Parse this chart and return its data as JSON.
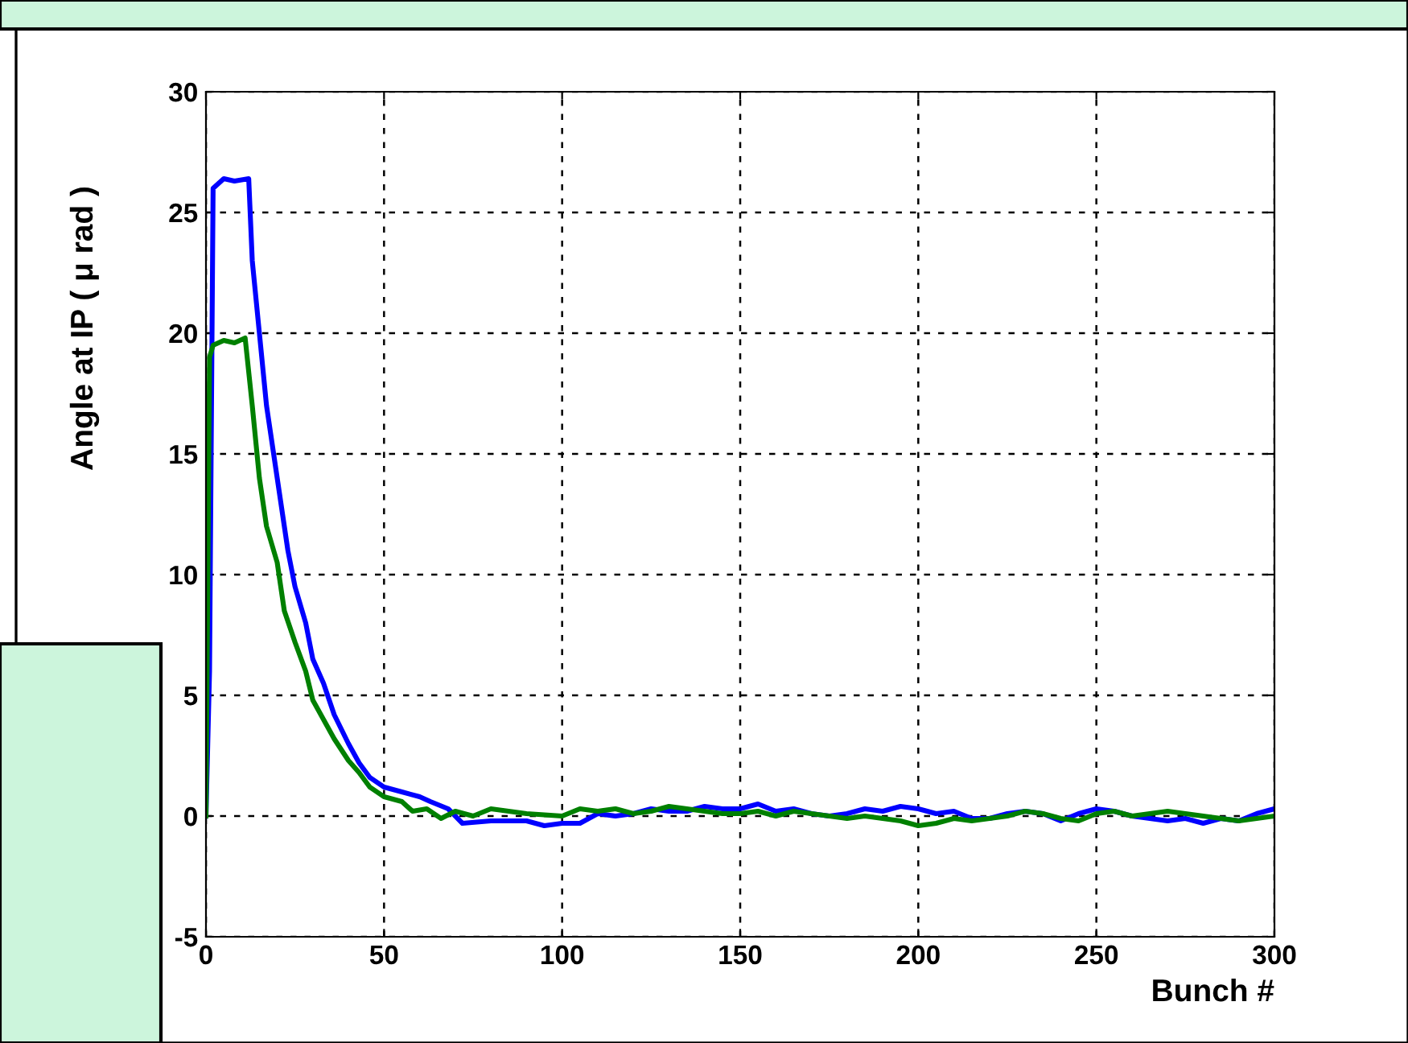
{
  "chart_data": {
    "type": "line",
    "xlabel": "Bunch #",
    "ylabel": "Angle at IP ( μ rad )",
    "xlim": [
      0,
      300
    ],
    "ylim": [
      -5,
      30
    ],
    "xticks": [
      0,
      50,
      100,
      150,
      200,
      250,
      300
    ],
    "yticks": [
      -5,
      0,
      5,
      10,
      15,
      20,
      25,
      30
    ],
    "grid": true,
    "line_style": "solid",
    "marker": "none",
    "series": [
      {
        "color": "#0000ff",
        "x": [
          0,
          1,
          2,
          5,
          8,
          12,
          13,
          15,
          17,
          20,
          23,
          25,
          28,
          30,
          33,
          36,
          40,
          43,
          46,
          50,
          55,
          60,
          63,
          68,
          72,
          80,
          90,
          95,
          100,
          105,
          110,
          115,
          120,
          125,
          130,
          135,
          140,
          145,
          150,
          155,
          160,
          165,
          170,
          175,
          180,
          185,
          190,
          195,
          200,
          205,
          210,
          215,
          220,
          225,
          230,
          235,
          240,
          245,
          250,
          255,
          260,
          265,
          270,
          275,
          280,
          285,
          290,
          295,
          300
        ],
        "values": [
          0,
          6,
          26.0,
          26.4,
          26.3,
          26.4,
          23,
          20,
          17,
          14,
          11,
          9.5,
          8,
          6.5,
          5.5,
          4.2,
          3,
          2.2,
          1.6,
          1.2,
          1.0,
          0.8,
          0.6,
          0.3,
          -0.3,
          -0.2,
          -0.2,
          -0.4,
          -0.3,
          -0.3,
          0.1,
          0.0,
          0.1,
          0.3,
          0.2,
          0.2,
          0.4,
          0.3,
          0.3,
          0.5,
          0.2,
          0.3,
          0.1,
          0.0,
          0.1,
          0.3,
          0.2,
          0.4,
          0.3,
          0.1,
          0.2,
          -0.1,
          -0.1,
          0.1,
          0.2,
          0.1,
          -0.2,
          0.1,
          0.3,
          0.2,
          0.0,
          -0.1,
          -0.2,
          -0.1,
          -0.3,
          -0.1,
          -0.2,
          0.1,
          0.3
        ]
      },
      {
        "color": "#008000",
        "x": [
          0,
          1,
          2,
          5,
          8,
          11,
          13,
          15,
          17,
          20,
          22,
          25,
          28,
          30,
          33,
          36,
          40,
          43,
          46,
          50,
          55,
          58,
          62,
          66,
          70,
          75,
          80,
          90,
          100,
          105,
          110,
          115,
          120,
          125,
          130,
          135,
          140,
          145,
          150,
          155,
          160,
          165,
          170,
          175,
          180,
          185,
          190,
          195,
          200,
          205,
          210,
          215,
          220,
          225,
          230,
          235,
          240,
          245,
          250,
          255,
          260,
          265,
          270,
          275,
          280,
          285,
          290,
          295,
          300
        ],
        "values": [
          0,
          19.0,
          19.5,
          19.7,
          19.6,
          19.8,
          17,
          14,
          12,
          10.5,
          8.5,
          7.2,
          6,
          4.8,
          4,
          3.2,
          2.3,
          1.8,
          1.2,
          0.8,
          0.6,
          0.2,
          0.3,
          -0.1,
          0.2,
          0.0,
          0.3,
          0.1,
          0.0,
          0.3,
          0.2,
          0.3,
          0.1,
          0.2,
          0.4,
          0.3,
          0.2,
          0.1,
          0.1,
          0.2,
          0.0,
          0.2,
          0.1,
          0.0,
          -0.1,
          0.0,
          -0.1,
          -0.2,
          -0.4,
          -0.3,
          -0.1,
          -0.2,
          -0.1,
          0.0,
          0.2,
          0.1,
          -0.1,
          -0.2,
          0.1,
          0.2,
          0.0,
          0.1,
          0.2,
          0.1,
          0.0,
          -0.1,
          -0.2,
          -0.1,
          0.0
        ]
      }
    ]
  }
}
